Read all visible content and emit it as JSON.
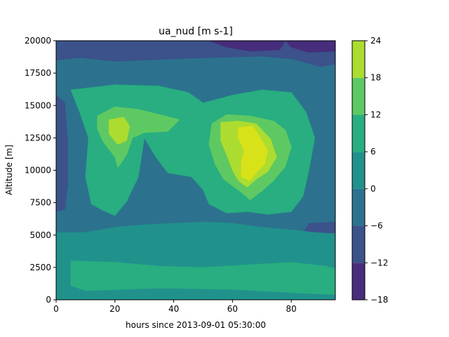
{
  "chart_data": {
    "type": "heatmap",
    "subtype": "filled-contour",
    "title": "ua_nud [m s-1]",
    "xlabel": "hours since 2013-09-01 05:30:00",
    "ylabel": "Altitude [m]",
    "xlim": [
      0,
      95
    ],
    "ylim": [
      0,
      20000
    ],
    "xticks": [
      0,
      20,
      40,
      60,
      80
    ],
    "yticks": [
      0,
      2500,
      5000,
      7500,
      10000,
      12500,
      15000,
      17500,
      20000
    ],
    "colorbar": {
      "levels": [
        -18,
        -12,
        -6,
        0,
        6,
        12,
        18,
        24
      ],
      "tick_labels": [
        "−18",
        "−12",
        "−6",
        "0",
        "6",
        "12",
        "18",
        "24"
      ],
      "colors": [
        "#472d7b",
        "#3b528b",
        "#2c728e",
        "#21918c",
        "#28ae80",
        "#5ec962",
        "#addc30",
        "#d8e219"
      ]
    },
    "regions": [
      {
        "band_index": 1,
        "value_range": [
          -12,
          -6
        ],
        "polygon": [
          [
            0,
            20000
          ],
          [
            95,
            20000
          ],
          [
            95,
            18200
          ],
          [
            90,
            18000
          ],
          [
            80,
            18600
          ],
          [
            70,
            18800
          ],
          [
            55,
            18700
          ],
          [
            40,
            18600
          ],
          [
            20,
            18400
          ],
          [
            8,
            18700
          ],
          [
            0,
            18500
          ]
        ]
      },
      {
        "band_index": 0,
        "value_range": [
          -18,
          -12
        ],
        "polygon": [
          [
            52,
            20000
          ],
          [
            78,
            20000
          ],
          [
            76,
            19300
          ],
          [
            66,
            19200
          ],
          [
            58,
            19500
          ]
        ]
      },
      {
        "band_index": 0,
        "value_range": [
          -18,
          -12
        ],
        "polygon": [
          [
            78,
            20000
          ],
          [
            95,
            20000
          ],
          [
            95,
            19200
          ],
          [
            86,
            19100
          ],
          [
            80,
            19500
          ]
        ]
      },
      {
        "band_index": 1,
        "value_range": [
          -12,
          -6
        ],
        "polygon": [
          [
            0,
            15800
          ],
          [
            3,
            15200
          ],
          [
            4,
            12000
          ],
          [
            4,
            9000
          ],
          [
            3,
            7000
          ],
          [
            0,
            6800
          ]
        ]
      },
      {
        "band_index": 1,
        "value_range": [
          -12,
          -6
        ],
        "polygon": [
          [
            95,
            4200
          ],
          [
            88,
            4300
          ],
          [
            84,
            5200
          ],
          [
            86,
            5900
          ],
          [
            95,
            6000
          ]
        ]
      },
      {
        "band_index": 3,
        "value_range": [
          0,
          6
        ],
        "polygon": [
          [
            0,
            5200
          ],
          [
            10,
            5200
          ],
          [
            20,
            5600
          ],
          [
            30,
            5800
          ],
          [
            40,
            5900
          ],
          [
            50,
            6000
          ],
          [
            60,
            5900
          ],
          [
            70,
            5600
          ],
          [
            80,
            5400
          ],
          [
            88,
            5200
          ],
          [
            95,
            5100
          ],
          [
            95,
            0
          ],
          [
            0,
            0
          ]
        ]
      },
      {
        "band_index": 4,
        "value_range": [
          6,
          12
        ],
        "polygon": [
          [
            5,
            16200
          ],
          [
            20,
            16600
          ],
          [
            35,
            16500
          ],
          [
            45,
            16000
          ],
          [
            50,
            15200
          ],
          [
            60,
            15800
          ],
          [
            70,
            16200
          ],
          [
            80,
            16000
          ],
          [
            85,
            14500
          ],
          [
            88,
            12500
          ],
          [
            86,
            10000
          ],
          [
            84,
            8000
          ],
          [
            80,
            6800
          ],
          [
            72,
            6600
          ],
          [
            65,
            6800
          ],
          [
            58,
            6700
          ],
          [
            52,
            7400
          ],
          [
            50,
            8500
          ],
          [
            46,
            9500
          ],
          [
            38,
            9800
          ],
          [
            34,
            11000
          ],
          [
            30,
            12500
          ],
          [
            28,
            9500
          ],
          [
            24,
            7600
          ],
          [
            20,
            6500
          ],
          [
            16,
            6900
          ],
          [
            12,
            7400
          ],
          [
            10,
            9500
          ],
          [
            11,
            12500
          ],
          [
            8,
            14500
          ]
        ]
      },
      {
        "band_index": 4,
        "value_range": [
          6,
          12
        ],
        "polygon": [
          [
            5,
            3000
          ],
          [
            20,
            2900
          ],
          [
            35,
            2600
          ],
          [
            50,
            2500
          ],
          [
            65,
            2700
          ],
          [
            80,
            2900
          ],
          [
            92,
            2600
          ],
          [
            95,
            2400
          ],
          [
            95,
            400
          ],
          [
            85,
            500
          ],
          [
            60,
            800
          ],
          [
            35,
            900
          ],
          [
            10,
            700
          ],
          [
            5,
            1100
          ]
        ]
      },
      {
        "band_index": 5,
        "value_range": [
          12,
          18
        ],
        "polygon": [
          [
            14,
            14200
          ],
          [
            20,
            14900
          ],
          [
            28,
            14700
          ],
          [
            37,
            14200
          ],
          [
            42,
            13900
          ],
          [
            38,
            13000
          ],
          [
            30,
            12900
          ],
          [
            26,
            12500
          ],
          [
            24,
            11200
          ],
          [
            21,
            10200
          ],
          [
            20,
            11000
          ],
          [
            16,
            12200
          ],
          [
            14,
            13200
          ]
        ]
      },
      {
        "band_index": 5,
        "value_range": [
          12,
          18
        ],
        "polygon": [
          [
            53,
            13600
          ],
          [
            58,
            14300
          ],
          [
            66,
            14200
          ],
          [
            74,
            13800
          ],
          [
            78,
            13100
          ],
          [
            80,
            11800
          ],
          [
            78,
            10300
          ],
          [
            74,
            9200
          ],
          [
            70,
            8400
          ],
          [
            66,
            7700
          ],
          [
            63,
            8300
          ],
          [
            57,
            9300
          ],
          [
            54,
            10500
          ],
          [
            52,
            12000
          ]
        ]
      },
      {
        "band_index": 6,
        "value_range": [
          18,
          24
        ],
        "polygon": [
          [
            18,
            13900
          ],
          [
            23,
            14100
          ],
          [
            25,
            13400
          ],
          [
            24,
            12300
          ],
          [
            21,
            12000
          ],
          [
            18,
            12800
          ]
        ]
      },
      {
        "band_index": 6,
        "value_range": [
          18,
          24
        ],
        "polygon": [
          [
            56,
            13700
          ],
          [
            62,
            13800
          ],
          [
            68,
            13600
          ],
          [
            73,
            12400
          ],
          [
            75,
            11000
          ],
          [
            72,
            9900
          ],
          [
            68,
            9300
          ],
          [
            65,
            8700
          ],
          [
            62,
            9200
          ],
          [
            60,
            10000
          ],
          [
            58,
            11200
          ],
          [
            56,
            12300
          ]
        ]
      },
      {
        "band_index": 7,
        "value_range": [
          24,
          30
        ],
        "polygon": [
          [
            62,
            13300
          ],
          [
            67,
            13400
          ],
          [
            70,
            12300
          ],
          [
            72,
            11500
          ],
          [
            71,
            10500
          ],
          [
            68,
            9800
          ],
          [
            66,
            9200
          ],
          [
            63,
            9500
          ],
          [
            63,
            10600
          ],
          [
            64,
            11500
          ],
          [
            62,
            12500
          ]
        ]
      }
    ]
  }
}
